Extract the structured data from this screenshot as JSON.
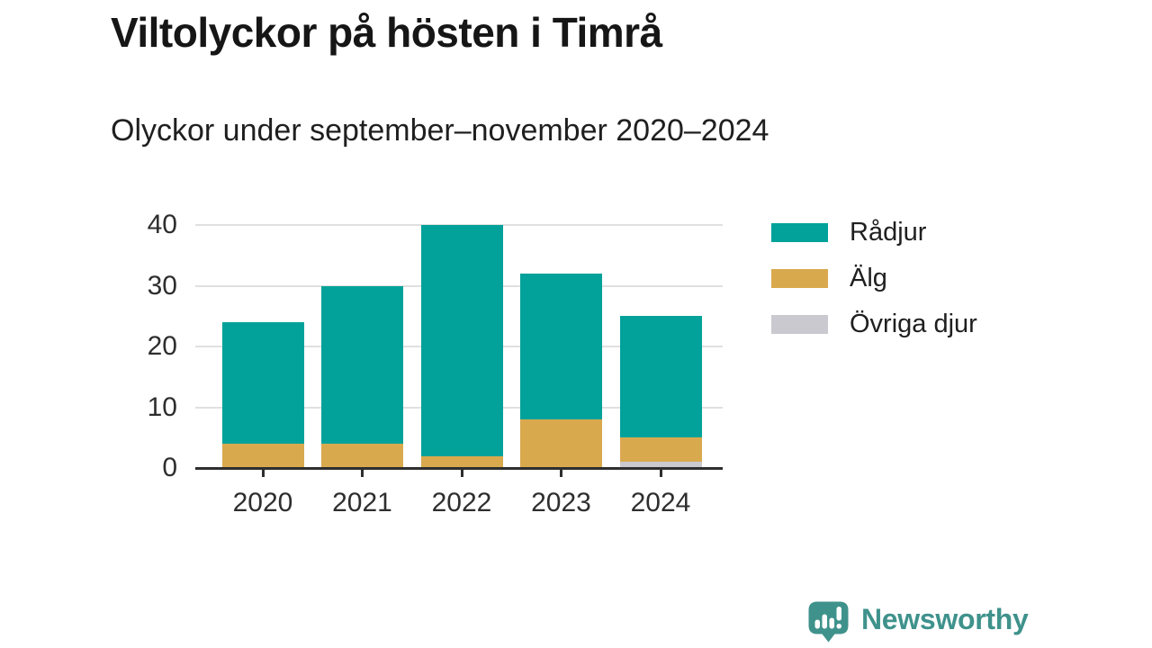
{
  "header": {
    "title": "Viltolyckor på hösten i Timrå",
    "subtitle": "Olyckor under september–november 2020–2024"
  },
  "chart_data": {
    "type": "bar",
    "stacked": true,
    "title": "Viltolyckor på hösten i Timrå",
    "subtitle": "Olyckor under september–november 2020–2024",
    "categories": [
      "2020",
      "2021",
      "2022",
      "2023",
      "2024"
    ],
    "series": [
      {
        "name": "Rådjur",
        "color": "#02A29A",
        "values": [
          20,
          26,
          38,
          24,
          20
        ]
      },
      {
        "name": "Älg",
        "color": "#D9A94E",
        "values": [
          4,
          4,
          2,
          8,
          4
        ]
      },
      {
        "name": "Övriga djur",
        "color": "#C9C9CF",
        "values": [
          0,
          0,
          0,
          0,
          1
        ]
      }
    ],
    "stack_totals": [
      24,
      30,
      40,
      32,
      25
    ],
    "xlabel": "",
    "ylabel": "",
    "ylim": [
      0,
      40
    ],
    "yticks": [
      0,
      10,
      20,
      30,
      40
    ],
    "grid": true,
    "legend_position": "right"
  },
  "branding": {
    "logo_text": "Newsworthy",
    "logo_color": "#3F928C",
    "logo_icon": "speech-bubble-bar-chart-exclamation"
  },
  "colors": {
    "background": "#FFFFFF",
    "axis": "#2E2E2E",
    "gridline": "#E0E0E0",
    "title_text": "#161616",
    "body_text": "#1F1F1F"
  }
}
